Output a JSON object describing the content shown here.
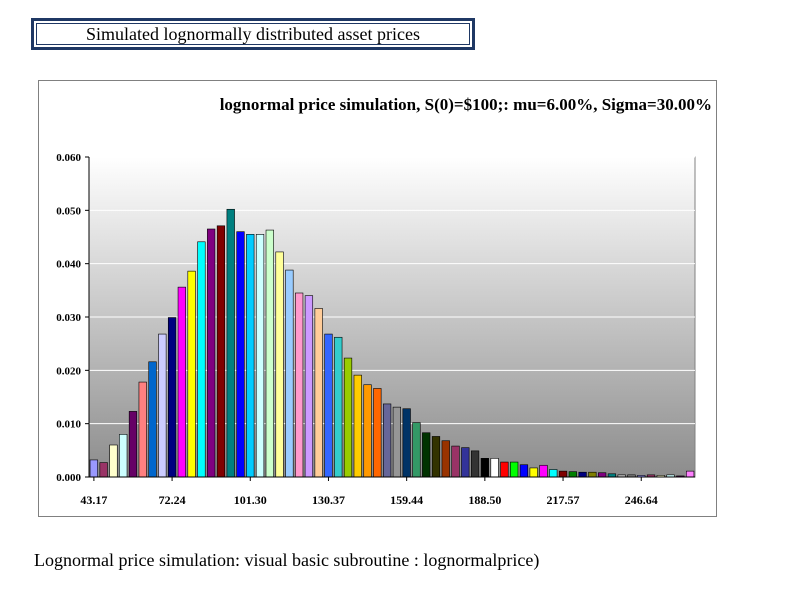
{
  "slide_title": "Simulated lognormally distributed asset prices",
  "caption": "Lognormal price simulation: visual basic subroutine : lognormalprice)",
  "chart_data": {
    "type": "bar",
    "title": "lognormal price simulation,  S(0)=$100;: mu=6.00%, Sigma=30.00%",
    "xlabel": "",
    "ylabel": "",
    "ylim": [
      0,
      0.06
    ],
    "yticks": [
      "0.000",
      "0.010",
      "0.020",
      "0.030",
      "0.040",
      "0.050",
      "0.060"
    ],
    "xtick_labels": [
      "43.17",
      "72.24",
      "101.30",
      "130.37",
      "159.44",
      "188.50",
      "217.57",
      "246.64"
    ],
    "xtick_every": 8,
    "grid": true,
    "values": [
      0.0032,
      0.0027,
      0.006,
      0.008,
      0.0123,
      0.0178,
      0.0216,
      0.0268,
      0.0299,
      0.0356,
      0.0386,
      0.0441,
      0.0465,
      0.0471,
      0.0502,
      0.046,
      0.0455,
      0.0455,
      0.0463,
      0.0422,
      0.0388,
      0.0345,
      0.034,
      0.0316,
      0.0268,
      0.0262,
      0.0223,
      0.0191,
      0.0173,
      0.0166,
      0.0137,
      0.0131,
      0.0128,
      0.0102,
      0.0083,
      0.0076,
      0.0068,
      0.0058,
      0.0055,
      0.0049,
      0.0035,
      0.0035,
      0.0028,
      0.0028,
      0.0023,
      0.0017,
      0.0022,
      0.0014,
      0.0011,
      0.001,
      0.0009,
      0.0009,
      0.0008,
      0.0006,
      0.0004,
      0.0004,
      0.0003,
      0.0004,
      0.0003,
      0.0004,
      0.0002,
      0.0011
    ],
    "colors": [
      "#9999ff",
      "#993366",
      "#ffffcc",
      "#ccffff",
      "#660066",
      "#ff8080",
      "#0066cc",
      "#ccccff",
      "#000080",
      "#ff00ff",
      "#ffff00",
      "#00ffff",
      "#800080",
      "#800000",
      "#008080",
      "#0000ff",
      "#00ccff",
      "#ccffff",
      "#ccffcc",
      "#ffff99",
      "#99ccff",
      "#ff99cc",
      "#cc99ff",
      "#ffcc99",
      "#3366ff",
      "#33cccc",
      "#99cc00",
      "#ffcc00",
      "#ff9900",
      "#ff6600",
      "#666699",
      "#969696",
      "#003366",
      "#339966",
      "#003300",
      "#333300",
      "#993300",
      "#993366",
      "#333399",
      "#333333",
      "#000000",
      "#ffffff",
      "#ff0000",
      "#00ff00",
      "#0000ff",
      "#ffff00",
      "#ff00ff",
      "#00ffff",
      "#800000",
      "#008000",
      "#000080",
      "#808000",
      "#800080",
      "#008080",
      "#c0c0c0",
      "#808080",
      "#9999ff",
      "#993366",
      "#ffffcc",
      "#ccffff",
      "#660066",
      "#ff80ff"
    ]
  }
}
